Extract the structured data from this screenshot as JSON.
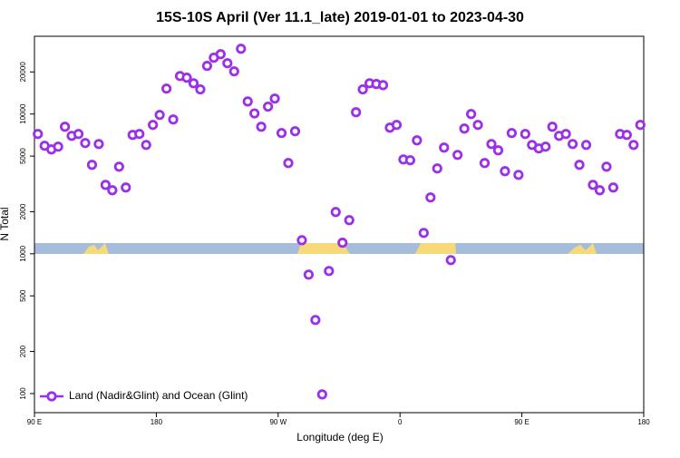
{
  "chart_data": {
    "type": "scatter",
    "title": "15S-10S April (Ver 11.1_late)   2019-01-01 to 2023-04-30",
    "xlabel": "Longitude (deg E)",
    "ylabel": "N Total",
    "ylog": true,
    "xlim": [
      90,
      540
    ],
    "ylim": [
      73,
      36000
    ],
    "xticks": [
      {
        "value": 90,
        "label": "90 E"
      },
      180,
      {
        "value": 270,
        "label": "90 W"
      },
      {
        "value": 360,
        "label": "0"
      },
      {
        "value": 450,
        "label": "90 E"
      },
      {
        "value": 540,
        "label": "180"
      }
    ],
    "yticks": [
      100,
      200,
      500,
      1000,
      2000,
      5000,
      10000,
      20000
    ],
    "legend": "bottom-left",
    "series": [
      {
        "name": "Land (Nadir&Glint) and Ocean (Glint)",
        "color": "#9b30e8",
        "x": [
          92.5,
          97.5,
          102.5,
          107.5,
          112.5,
          117.5,
          122.5,
          127.5,
          132.5,
          137.5,
          142.5,
          147.5,
          152.5,
          157.5,
          162.5,
          167.5,
          172.5,
          177.5,
          182.5,
          187.5,
          192.5,
          197.5,
          202.5,
          207.5,
          212.5,
          217.5,
          222.5,
          227.5,
          232.5,
          237.5,
          242.5,
          247.5,
          252.5,
          257.5,
          262.5,
          267.5,
          272.5,
          277.5,
          282.5,
          287.5,
          292.5,
          297.5,
          302.5,
          307.5,
          312.5,
          317.5,
          322.5,
          327.5,
          332.5,
          337.5,
          342.5,
          347.5,
          352.5,
          357.5,
          362.5,
          367.5,
          372.5,
          377.5,
          382.5,
          387.5,
          392.5,
          397.5,
          402.5,
          407.5,
          412.5,
          417.5,
          422.5,
          427.5,
          432.5,
          437.5,
          442.5,
          447.5,
          452.5,
          457.5,
          462.5,
          467.5,
          472.5,
          477.5,
          482.5,
          487.5,
          492.5,
          497.5,
          502.5,
          507.5,
          512.5,
          517.5,
          522.5,
          527.5,
          532.5,
          537.5
        ],
        "values": [
          7200,
          5930,
          5580,
          5840,
          8110,
          6980,
          7200,
          6200,
          4330,
          6100,
          3110,
          2850,
          4200,
          2980,
          7090,
          7200,
          6010,
          8360,
          9860,
          15200,
          9140,
          18700,
          18200,
          16600,
          15000,
          22100,
          25300,
          26800,
          23100,
          20200,
          29300,
          12300,
          10100,
          8110,
          11300,
          12900,
          7310,
          4460,
          7530,
          1250,
          709,
          336,
          98.6,
          753,
          1990,
          1200,
          1740,
          10300,
          15000,
          16600,
          16400,
          16100,
          7990,
          8360,
          4730,
          4670,
          6480,
          1410,
          2530,
          4080,
          5750,
          901,
          5100,
          7870,
          10000,
          8360,
          4460,
          6100,
          5500,
          3900,
          7310,
          3670,
          7200,
          6010,
          5670,
          5840,
          8110,
          6980,
          7200,
          6100,
          4330,
          6010,
          3110,
          2850,
          4200,
          2980,
          7200,
          7090,
          6010,
          8360
        ]
      }
    ]
  }
}
